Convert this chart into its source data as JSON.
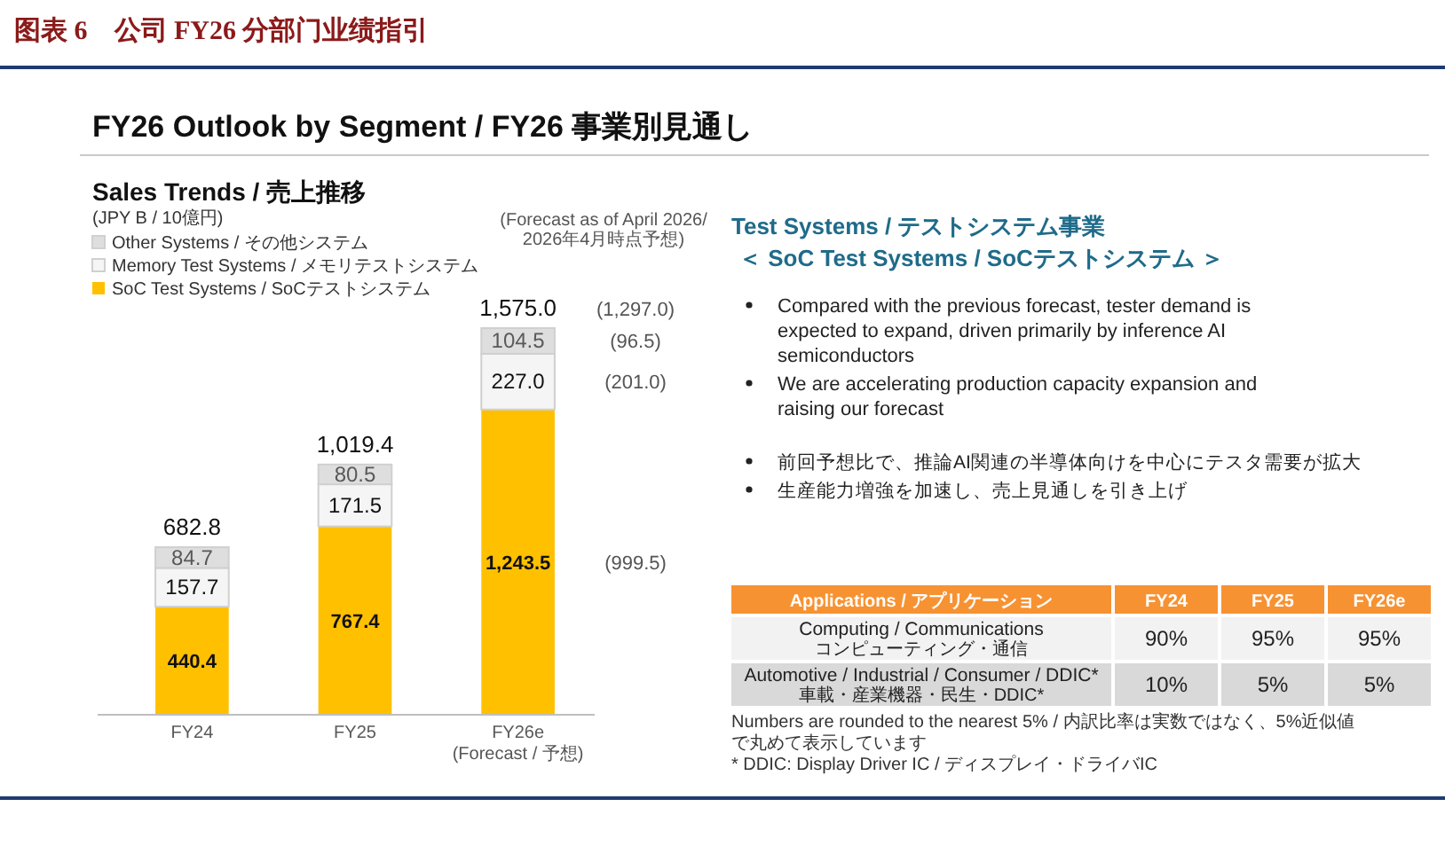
{
  "chart_data": [
    {
      "type": "other",
      "title": "图表 6　公司 FY26 分部门业绩指引",
      "subtitle": "FY26 Outlook by Segment / FY26 事業別見通し"
    },
    {
      "type": "bar",
      "title": "Sales Trends / 売上推移",
      "categories": [
        "FY24",
        "FY25",
        "FY26e"
      ],
      "stacked": true,
      "legend": "top left",
      "series": [
        {
          "name": "SoC Test Systems / SoCテストシステム",
          "color": "#ffc000",
          "values": [
            440.4,
            767.4,
            1243.5
          ],
          "value_labels": [
            "440.4",
            "767.4",
            "1,243.5"
          ]
        },
        {
          "name": "Memory Test Systems / メモリテストシステム",
          "color": "#f5f5f5",
          "values": [
            157.7,
            171.5,
            227.0
          ],
          "value_labels": [
            "157.7",
            "171.5",
            "227.0"
          ]
        },
        {
          "name": "Other Systems / その他システム",
          "color": "#dedede",
          "values": [
            84.7,
            80.5,
            104.5
          ],
          "value_labels": [
            "84.7",
            "80.5",
            "104.5"
          ]
        }
      ],
      "totals": [
        "682.8",
        "1,019.4",
        "1,575.0"
      ],
      "annotations": [
        "(JPY B / 10億円)",
        "(Forecast as of April 2026/\n2026年4月時点予想)",
        "(1,297.0)",
        "(96.5)",
        "(201.0)",
        "(999.5)",
        "(Forecast / 予想)"
      ]
    },
    {
      "type": "other",
      "title": "Test Systems / テストシステム事業",
      "subtitle": "＜ SoC Test Systems / SoCテストシステム ＞",
      "annotations": [
        "Compared with the previous forecast, tester demand is expected to expand, driven primarily by inference AI semiconductors",
        "We are accelerating production capacity expansion and raising our forecast",
        "前回予想比で、推論AI関連の半導体向けを中心にテスタ需要が拡大",
        "生産能力増強を加速し、売上見通しを引き上げ"
      ]
    },
    {
      "type": "other",
      "ylabel": "Applications / アプリケーション",
      "categories": [
        "FY24",
        "FY25",
        "FY26e"
      ],
      "y_categories": [
        "Computing / Communications\nコンピューティング・通信",
        "Automotive / Industrial / Consumer / DDIC*\n車載・産業機器・民生・DDIC*"
      ],
      "cell_labels": [
        [
          "90%",
          "95%",
          "95%"
        ],
        [
          "10%",
          "5%",
          "5%"
        ]
      ],
      "annotations": [
        "Numbers are rounded to the nearest 5% / 内訳比率は実数ではなく、5%近似値で丸めて表示しています",
        "* DDIC: Display Driver IC / ディスプレイ・ドライバIC"
      ]
    }
  ]
}
